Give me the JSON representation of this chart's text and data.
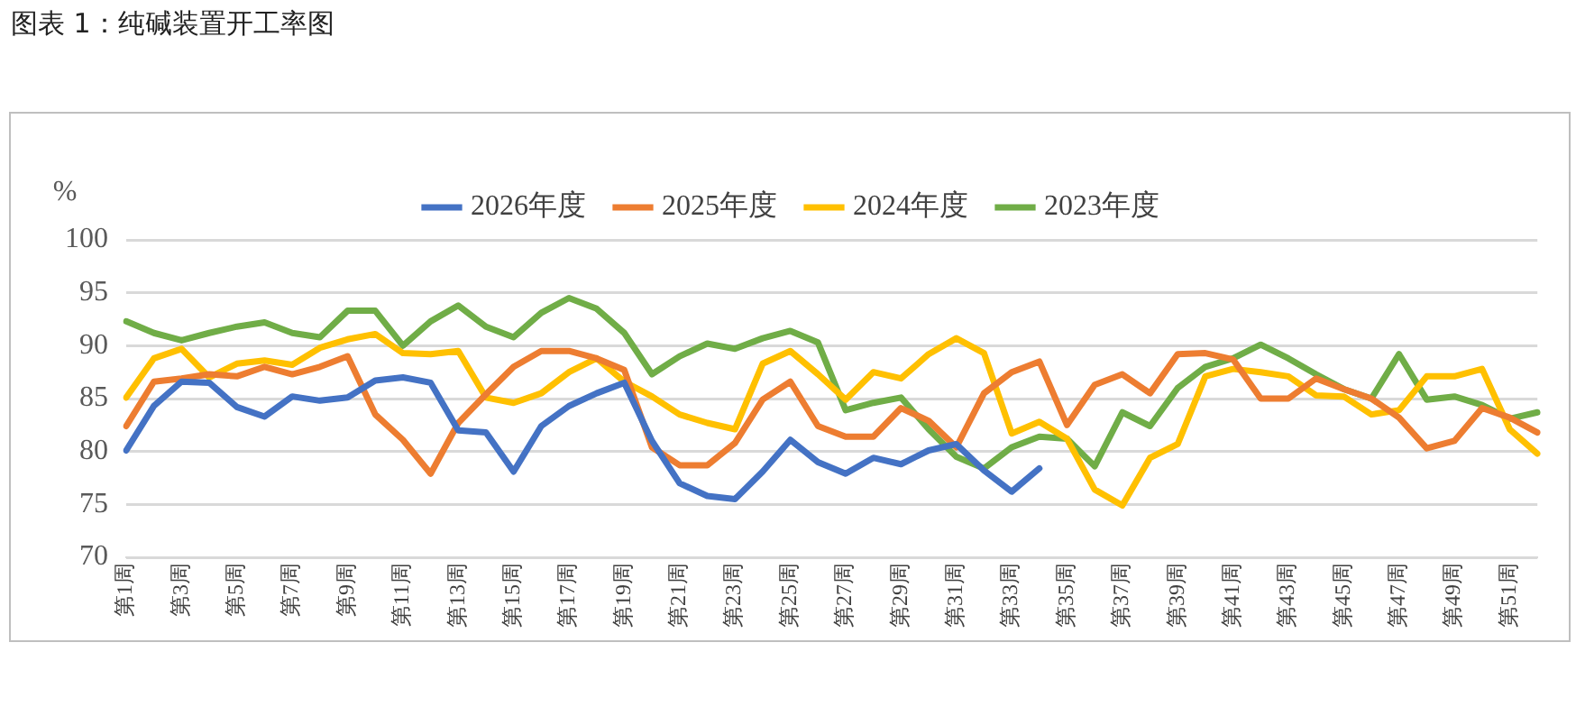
{
  "chart_data": {
    "type": "line",
    "title": "图表 1：纯碱装置开工率图",
    "ylabel": "%",
    "categories": [
      "第1周",
      null,
      "第3周",
      null,
      "第5周",
      null,
      "第7周",
      null,
      "第9周",
      null,
      "第11周",
      null,
      "第13周",
      null,
      "第15周",
      null,
      "第17周",
      null,
      "第19周",
      null,
      "第21周",
      null,
      "第23周",
      null,
      "第25周",
      null,
      "第27周",
      null,
      "第29周",
      null,
      "第31周",
      null,
      "第33周",
      null,
      "第35周",
      null,
      "第37周",
      null,
      "第39周",
      null,
      "第41周",
      null,
      "第43周",
      null,
      "第45周",
      null,
      "第47周",
      null,
      "第49周",
      null,
      "第51周",
      null
    ],
    "series": [
      {
        "name": "2026年度",
        "color": "#4472c4",
        "values": [
          80.1,
          84.3,
          86.6,
          86.5,
          84.2,
          83.3,
          85.2,
          84.8,
          85.1,
          86.7,
          87,
          86.5,
          82,
          81.8,
          78.1,
          82.4,
          84.3,
          85.5,
          86.5,
          81,
          77,
          75.8,
          75.5,
          78.1,
          81.1,
          79,
          77.9,
          79.4,
          78.8,
          80.1,
          80.7,
          78.2,
          76.2,
          78.4,
          null,
          null,
          null,
          null,
          null,
          null,
          null,
          null,
          null,
          null,
          null,
          null,
          null,
          null,
          null,
          null,
          null,
          null
        ]
      },
      {
        "name": "2025年度",
        "color": "#ed7d31",
        "values": [
          82.4,
          86.6,
          86.9,
          87.3,
          87.1,
          88,
          87.3,
          88,
          89,
          83.5,
          81.1,
          77.9,
          82.7,
          85.4,
          88,
          89.5,
          89.5,
          88.8,
          87.7,
          80.4,
          78.7,
          78.7,
          80.8,
          84.9,
          86.6,
          82.4,
          81.4,
          81.4,
          84.1,
          82.9,
          80.4,
          85.5,
          87.5,
          88.5,
          82.5,
          86.3,
          87.3,
          85.5,
          89.2,
          89.3,
          88.7,
          85,
          85,
          86.9,
          85.9,
          85,
          83.2,
          80.3,
          81,
          84.1,
          83.2,
          81.8
        ]
      },
      {
        "name": "2024年度",
        "color": "#ffc000",
        "values": [
          85.1,
          88.8,
          89.7,
          87,
          88.3,
          88.6,
          88.2,
          89.8,
          90.6,
          91.1,
          89.3,
          89.2,
          89.5,
          85.1,
          84.6,
          85.5,
          87.5,
          88.8,
          86.6,
          85.2,
          83.5,
          82.7,
          82.1,
          88.3,
          89.5,
          87.3,
          84.9,
          87.5,
          86.9,
          89.2,
          90.7,
          89.3,
          81.7,
          82.8,
          81.2,
          76.4,
          74.9,
          79.4,
          80.7,
          87.1,
          87.8,
          87.5,
          87.1,
          85.3,
          85.2,
          83.5,
          83.9,
          87.1,
          87.1,
          87.8,
          82.1,
          79.8
        ]
      },
      {
        "name": "2023年度",
        "color": "#70ad47",
        "values": [
          92.3,
          91.2,
          90.5,
          91.2,
          91.8,
          92.2,
          91.2,
          90.8,
          93.3,
          93.3,
          90,
          92.3,
          93.8,
          91.8,
          90.8,
          93.1,
          94.5,
          93.5,
          91.2,
          87.3,
          89,
          90.2,
          89.7,
          90.7,
          91.4,
          90.3,
          83.9,
          84.6,
          85.1,
          82.1,
          79.5,
          78.4,
          80.4,
          81.4,
          81.2,
          78.6,
          83.7,
          82.4,
          86,
          88,
          88.8,
          90.1,
          88.8,
          87.3,
          85.9,
          85,
          89.2,
          84.9,
          85.2,
          84.4,
          83.1,
          83.7
        ]
      }
    ],
    "ylim": [
      70,
      100
    ],
    "yticks": [
      70,
      75,
      80,
      85,
      90,
      95,
      100
    ],
    "grid": "y",
    "legend": "top",
    "marker": "none",
    "line_style": "solid"
  }
}
